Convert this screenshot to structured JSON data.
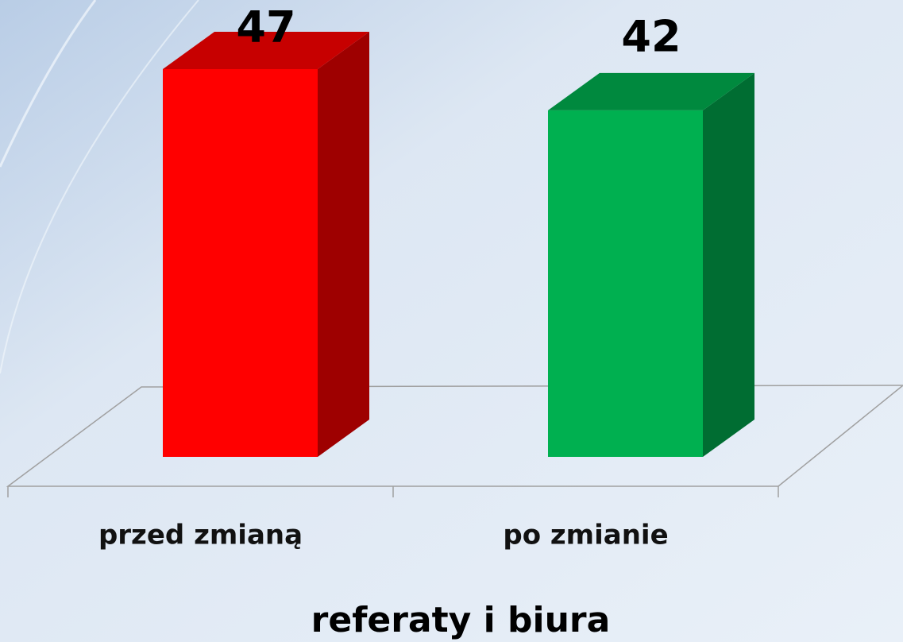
{
  "chart_data": {
    "type": "bar3d",
    "categories": [
      "przed zmianą",
      "po zmianie"
    ],
    "values": [
      47,
      42
    ],
    "colors": [
      "#ff0000",
      "#00b050"
    ],
    "x_label": "referaty i biura"
  }
}
